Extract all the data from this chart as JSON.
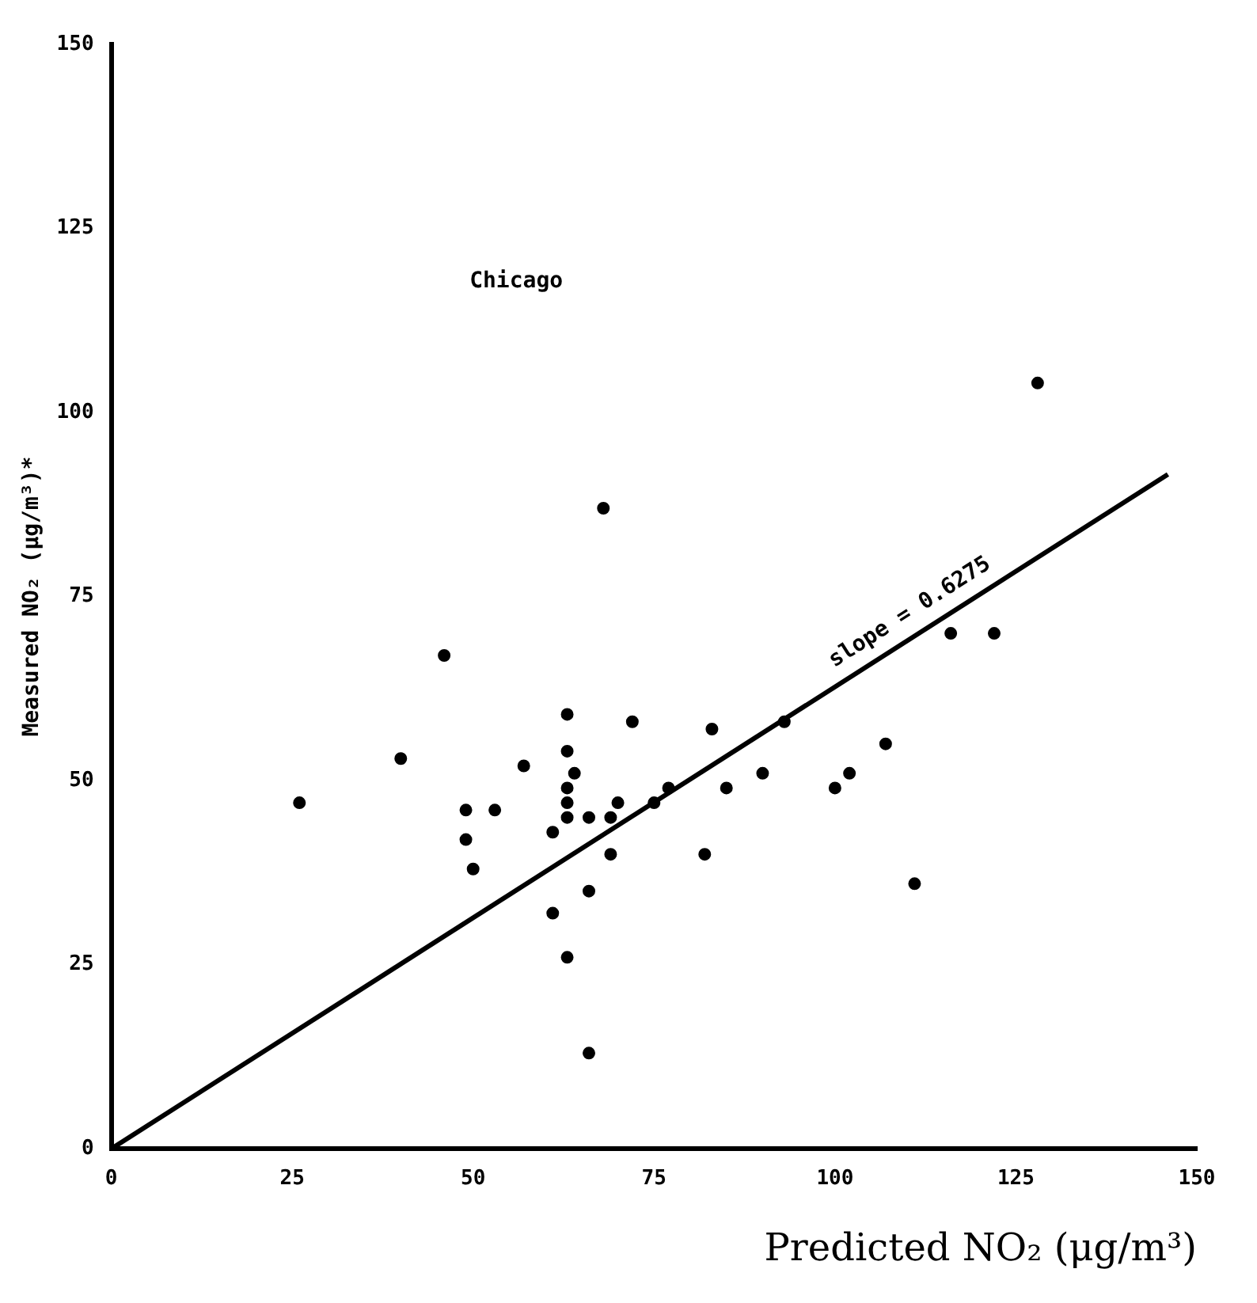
{
  "chart_data": {
    "type": "scatter",
    "xlabel": "Predicted NO₂ (μg/m³)",
    "ylabel": "Measured NO₂ (μg/m³)*",
    "xlim": [
      0,
      150
    ],
    "ylim": [
      0,
      150
    ],
    "xticks": [
      0,
      25,
      50,
      75,
      100,
      125,
      150
    ],
    "yticks": [
      0,
      25,
      50,
      75,
      100,
      125,
      150
    ],
    "grid": false,
    "legend": false,
    "marker": "circle",
    "annotations": [
      "Chicago",
      {
        "text": "slope = 0.6275",
        "x": 112,
        "y": 70.3
      }
    ],
    "series": [
      {
        "type": "scatter",
        "color": "#000000",
        "x": [
          68,
          46,
          26,
          40,
          63,
          72,
          83,
          63,
          57,
          64,
          90,
          63,
          85,
          77,
          49,
          53,
          63,
          70,
          75,
          63,
          66,
          69,
          49,
          61,
          69,
          82,
          50,
          66,
          61,
          63,
          66,
          128,
          116,
          122,
          93,
          107,
          102,
          100,
          111
        ],
        "values": [
          87,
          67,
          47,
          53,
          59,
          58,
          57,
          54,
          52,
          51,
          51,
          49,
          49,
          49,
          46,
          46,
          47,
          47,
          47,
          45,
          45,
          45,
          42,
          43,
          40,
          40,
          38,
          35,
          32,
          26,
          13,
          104,
          70,
          70,
          58,
          55,
          51,
          49,
          36
        ]
      },
      {
        "type": "line",
        "color": "#000000",
        "x": [
          0,
          146
        ],
        "values": [
          0,
          91.6
        ],
        "line_style": "solid",
        "marker": "none"
      }
    ]
  }
}
